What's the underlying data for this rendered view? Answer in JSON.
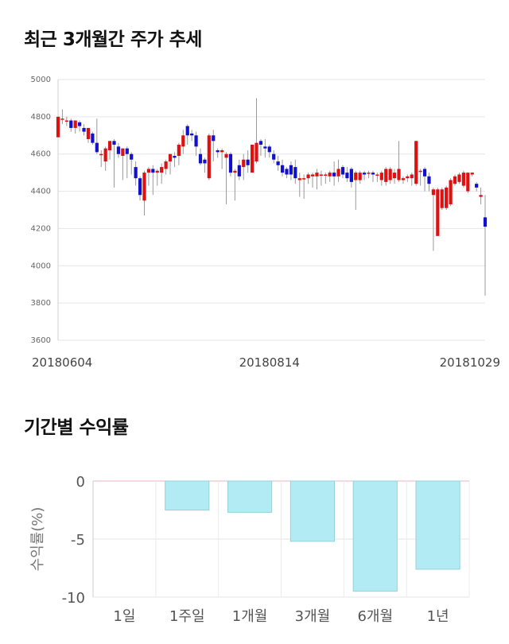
{
  "titles": {
    "price_trend": "최근 3개월간 주가 추세",
    "returns": "기간별 수익률"
  },
  "colors": {
    "up": "#dd1111",
    "down": "#1111cc",
    "bar_fill": "#b3ebf4",
    "bar_stroke": "#96d2dc",
    "grid": "#e6e6e6"
  },
  "chart_data": [
    {
      "type": "candlestick",
      "ylim": [
        3600,
        5000
      ],
      "yticks": [
        3600,
        3800,
        4000,
        4200,
        4400,
        4600,
        4800,
        5000
      ],
      "x_tick_labels": [
        "20180604",
        "20180814",
        "20181029"
      ],
      "x_tick_index": [
        0,
        49,
        98
      ],
      "grid": true,
      "candles": [
        [
          4690,
          4800,
          4800,
          4690
        ],
        [
          4790,
          4790,
          4840,
          4760
        ],
        [
          4780,
          4780,
          4800,
          4750
        ],
        [
          4780,
          4740,
          4790,
          4720
        ],
        [
          4740,
          4780,
          4780,
          4710
        ],
        [
          4770,
          4750,
          4780,
          4720
        ],
        [
          4740,
          4720,
          4760,
          4700
        ],
        [
          4680,
          4740,
          4740,
          4660
        ],
        [
          4710,
          4660,
          4720,
          4650
        ],
        [
          4660,
          4610,
          4790,
          4600
        ],
        [
          4600,
          4600,
          4620,
          4530
        ],
        [
          4560,
          4630,
          4640,
          4510
        ],
        [
          4620,
          4670,
          4670,
          4570
        ],
        [
          4670,
          4650,
          4680,
          4420
        ],
        [
          4640,
          4600,
          4660,
          4580
        ],
        [
          4590,
          4630,
          4630,
          4460
        ],
        [
          4630,
          4600,
          4640,
          4470
        ],
        [
          4600,
          4570,
          4610,
          4490
        ],
        [
          4530,
          4470,
          4560,
          4430
        ],
        [
          4470,
          4380,
          4480,
          4350
        ],
        [
          4350,
          4500,
          4510,
          4270
        ],
        [
          4500,
          4520,
          4530,
          4430
        ],
        [
          4520,
          4500,
          4540,
          4380
        ],
        [
          4500,
          4510,
          4520,
          4430
        ],
        [
          4500,
          4530,
          4550,
          4440
        ],
        [
          4520,
          4560,
          4570,
          4490
        ],
        [
          4560,
          4600,
          4600,
          4490
        ],
        [
          4590,
          4580,
          4610,
          4530
        ],
        [
          4590,
          4650,
          4660,
          4540
        ],
        [
          4640,
          4700,
          4730,
          4600
        ],
        [
          4750,
          4700,
          4760,
          4650
        ],
        [
          4710,
          4700,
          4730,
          4670
        ],
        [
          4700,
          4640,
          4720,
          4590
        ],
        [
          4600,
          4550,
          4630,
          4540
        ],
        [
          4570,
          4550,
          4580,
          4500
        ],
        [
          4470,
          4700,
          4710,
          4460
        ],
        [
          4700,
          4670,
          4730,
          4560
        ],
        [
          4620,
          4610,
          4630,
          4580
        ],
        [
          4610,
          4620,
          4630,
          4520
        ],
        [
          4580,
          4600,
          4610,
          4330
        ],
        [
          4600,
          4500,
          4610,
          4480
        ],
        [
          4500,
          4510,
          4520,
          4350
        ],
        [
          4540,
          4480,
          4570,
          4460
        ],
        [
          4530,
          4570,
          4600,
          4460
        ],
        [
          4570,
          4540,
          4620,
          4500
        ],
        [
          4500,
          4650,
          4650,
          4500
        ],
        [
          4560,
          4660,
          4900,
          4550
        ],
        [
          4670,
          4650,
          4680,
          4590
        ],
        [
          4640,
          4630,
          4680,
          4580
        ],
        [
          4640,
          4610,
          4650,
          4580
        ],
        [
          4600,
          4570,
          4620,
          4550
        ],
        [
          4560,
          4540,
          4590,
          4510
        ],
        [
          4540,
          4500,
          4570,
          4480
        ],
        [
          4520,
          4490,
          4530,
          4470
        ],
        [
          4540,
          4490,
          4560,
          4460
        ],
        [
          4530,
          4470,
          4570,
          4440
        ],
        [
          4460,
          4470,
          4500,
          4370
        ],
        [
          4470,
          4470,
          4490,
          4360
        ],
        [
          4470,
          4490,
          4500,
          4440
        ],
        [
          4480,
          4490,
          4500,
          4420
        ],
        [
          4480,
          4500,
          4520,
          4410
        ],
        [
          4490,
          4490,
          4510,
          4430
        ],
        [
          4490,
          4490,
          4500,
          4440
        ],
        [
          4480,
          4500,
          4510,
          4450
        ],
        [
          4500,
          4480,
          4560,
          4430
        ],
        [
          4480,
          4520,
          4570,
          4450
        ],
        [
          4530,
          4490,
          4540,
          4470
        ],
        [
          4500,
          4470,
          4530,
          4450
        ],
        [
          4520,
          4450,
          4530,
          4420
        ],
        [
          4460,
          4500,
          4510,
          4300
        ],
        [
          4460,
          4500,
          4510,
          4440
        ],
        [
          4500,
          4490,
          4510,
          4460
        ],
        [
          4500,
          4500,
          4510,
          4470
        ],
        [
          4500,
          4490,
          4510,
          4450
        ],
        [
          4490,
          4490,
          4500,
          4450
        ],
        [
          4460,
          4500,
          4510,
          4430
        ],
        [
          4450,
          4520,
          4530,
          4430
        ],
        [
          4460,
          4520,
          4530,
          4440
        ],
        [
          4470,
          4500,
          4520,
          4440
        ],
        [
          4460,
          4520,
          4670,
          4450
        ],
        [
          4460,
          4470,
          4480,
          4440
        ],
        [
          4470,
          4480,
          4490,
          4450
        ],
        [
          4470,
          4490,
          4500,
          4430
        ],
        [
          4440,
          4670,
          4670,
          4430
        ],
        [
          4510,
          4510,
          4520,
          4430
        ],
        [
          4520,
          4480,
          4530,
          4400
        ],
        [
          4480,
          4440,
          4500,
          4400
        ],
        [
          4380,
          4410,
          4420,
          4080
        ],
        [
          4160,
          4410,
          4420,
          4160
        ],
        [
          4310,
          4410,
          4420,
          4300
        ],
        [
          4310,
          4420,
          4430,
          4300
        ],
        [
          4330,
          4460,
          4470,
          4320
        ],
        [
          4440,
          4480,
          4490,
          4430
        ],
        [
          4450,
          4490,
          4500,
          4440
        ],
        [
          4430,
          4500,
          4510,
          4420
        ],
        [
          4400,
          4500,
          4500,
          4390
        ],
        [
          4490,
          4500,
          4500,
          4480
        ],
        [
          4440,
          4420,
          4450,
          4400
        ],
        [
          4370,
          4380,
          4420,
          4330
        ],
        [
          4260,
          4210,
          4380,
          3840
        ]
      ]
    },
    {
      "type": "bar",
      "categories": [
        "1일",
        "1주일",
        "1개월",
        "3개월",
        "6개월",
        "1년"
      ],
      "values": [
        0,
        -2.5,
        -2.7,
        -5.2,
        -9.5,
        -7.6
      ],
      "ylabel": "수익률(%)",
      "ylim": [
        -10,
        0
      ],
      "yticks": [
        0,
        -5,
        -10
      ],
      "grid": true
    }
  ]
}
